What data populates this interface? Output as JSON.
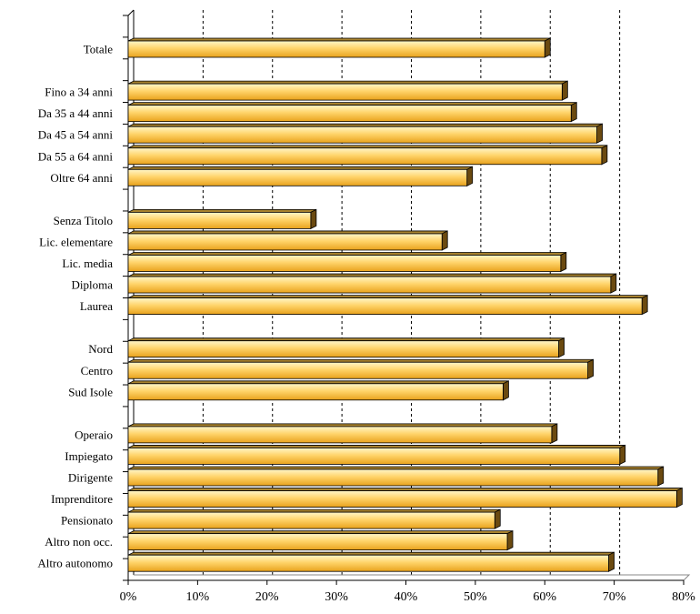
{
  "chart_data": {
    "type": "bar",
    "orientation": "horizontal",
    "style": "3d",
    "grid": "dashed vertical",
    "xlim": [
      0,
      80
    ],
    "x_ticks": [
      "0%",
      "10%",
      "20%",
      "30%",
      "40%",
      "50%",
      "60%",
      "70%",
      "80%"
    ],
    "rows": [
      {
        "label": "Totale",
        "value": 60
      },
      {
        "label": "",
        "value": null
      },
      {
        "label": "Fino a 34 anni",
        "value": 62.5
      },
      {
        "label": "Da 35 a 44 anni",
        "value": 63.8
      },
      {
        "label": "Da 45 a 54 anni",
        "value": 67.5
      },
      {
        "label": "Da 55 a 64 anni",
        "value": 68.2
      },
      {
        "label": "Oltre 64 anni",
        "value": 48.8
      },
      {
        "label": "",
        "value": null
      },
      {
        "label": "Senza Titolo",
        "value": 26.3
      },
      {
        "label": "Lic. elementare",
        "value": 45.2
      },
      {
        "label": "Lic. media",
        "value": 62.3
      },
      {
        "label": "Diploma",
        "value": 69.5
      },
      {
        "label": "Laurea",
        "value": 74
      },
      {
        "label": "",
        "value": null
      },
      {
        "label": "Nord",
        "value": 62
      },
      {
        "label": "Centro",
        "value": 66.2
      },
      {
        "label": "Sud Isole",
        "value": 54
      },
      {
        "label": "",
        "value": null
      },
      {
        "label": "Operaio",
        "value": 61
      },
      {
        "label": "Impiegato",
        "value": 70.8
      },
      {
        "label": "Dirigente",
        "value": 76.3
      },
      {
        "label": "Imprenditore",
        "value": 79
      },
      {
        "label": "Pensionato",
        "value": 52.8
      },
      {
        "label": "Altro non occ.",
        "value": 54.6
      },
      {
        "label": "Altro autonomo",
        "value": 69.2
      }
    ],
    "colors": {
      "bar_light": "#fff6c8",
      "bar_mid": "#ffd46a",
      "bar_dark": "#e8a21c",
      "bar_side": "#6b4a10",
      "bar_top": "#a8822e",
      "outline": "#000000",
      "grid": "#000000"
    }
  }
}
